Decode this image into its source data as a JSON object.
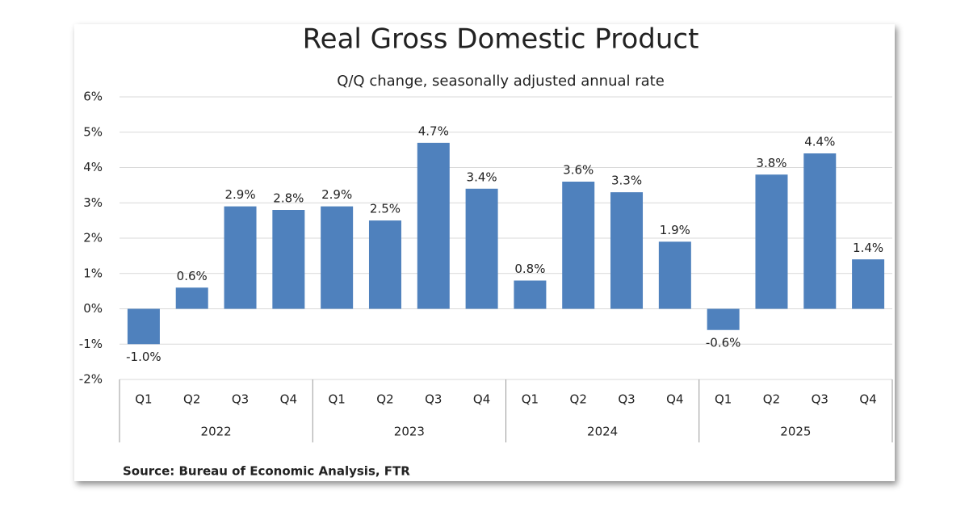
{
  "chart_data": {
    "type": "bar",
    "title": "Real Gross Domestic Product",
    "subtitle": "Q/Q change, seasonally adjusted annual rate",
    "source": "Source: Bureau of Economic Analysis, FTR",
    "categories": [
      "Q1",
      "Q2",
      "Q3",
      "Q4",
      "Q1",
      "Q2",
      "Q3",
      "Q4",
      "Q1",
      "Q2",
      "Q3",
      "Q4",
      "Q1",
      "Q2",
      "Q3",
      "Q4"
    ],
    "category_groups": [
      "2022",
      "2023",
      "2024",
      "2025"
    ],
    "values": [
      -1.0,
      0.6,
      2.9,
      2.8,
      2.9,
      2.5,
      4.7,
      3.4,
      0.8,
      3.6,
      3.3,
      1.9,
      -0.6,
      3.8,
      4.4,
      1.4
    ],
    "value_labels": [
      "-1.0%",
      "0.6%",
      "2.9%",
      "2.8%",
      "2.9%",
      "2.5%",
      "4.7%",
      "3.4%",
      "0.8%",
      "3.6%",
      "3.3%",
      "1.9%",
      "-0.6%",
      "3.8%",
      "4.4%",
      "1.4%"
    ],
    "color": "#4f81bd",
    "ylim": [
      -2,
      6
    ],
    "yticks": [
      {
        "value": -2,
        "label": "-2%"
      },
      {
        "value": -1,
        "label": "-1%"
      },
      {
        "value": 0,
        "label": "0%"
      },
      {
        "value": 1,
        "label": "1%"
      },
      {
        "value": 2,
        "label": "2%"
      },
      {
        "value": 3,
        "label": "3%"
      },
      {
        "value": 4,
        "label": "4%"
      },
      {
        "value": 5,
        "label": "5%"
      },
      {
        "value": 6,
        "label": "6%"
      }
    ],
    "grid": true
  }
}
